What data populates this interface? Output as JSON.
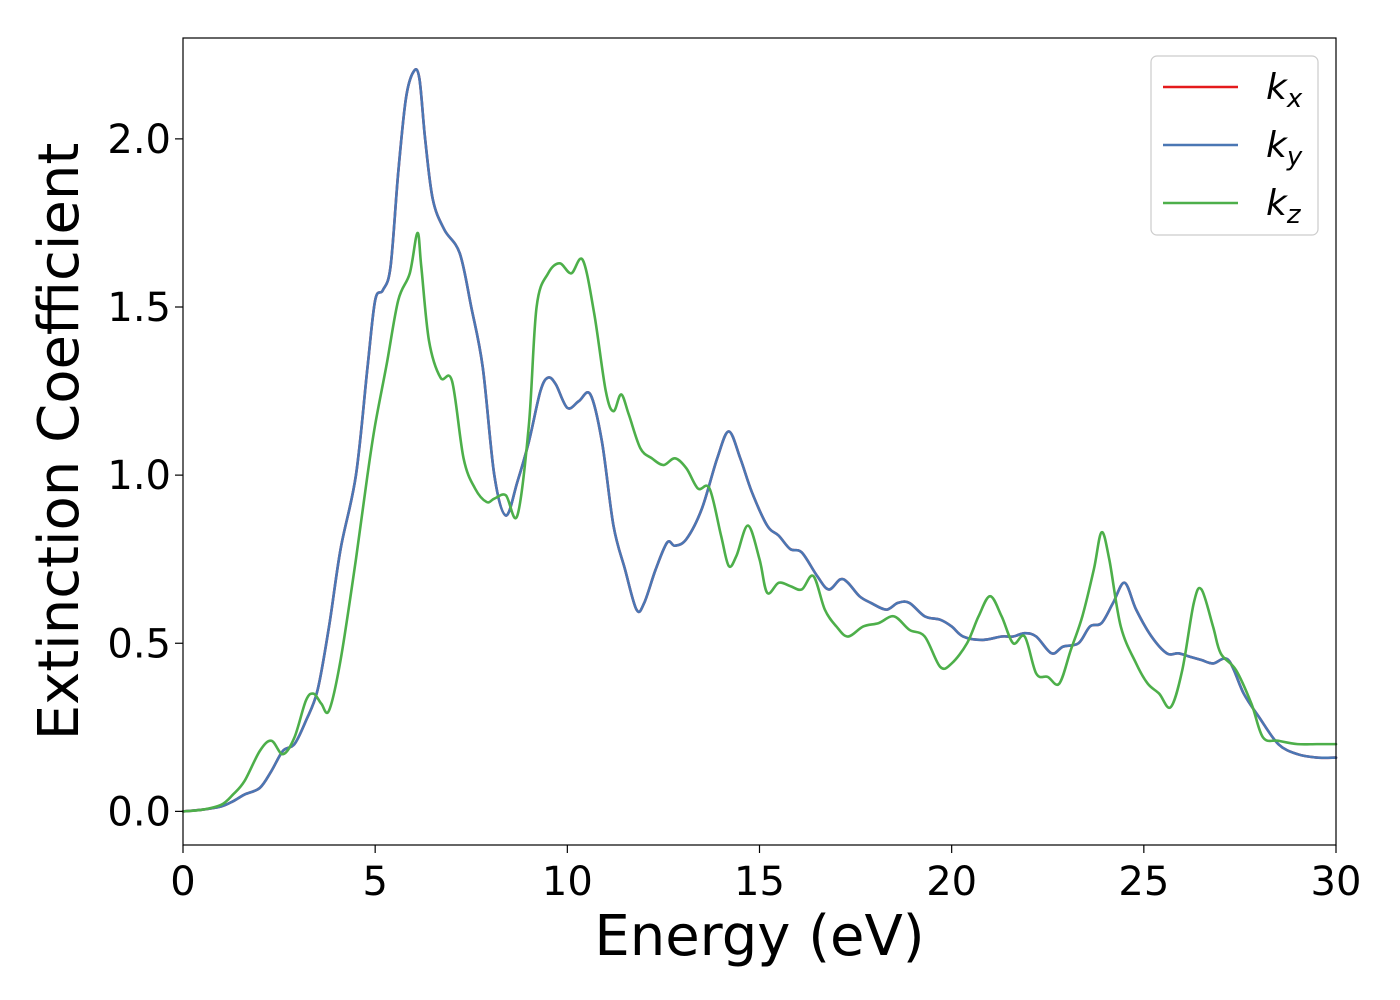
{
  "chart_data": {
    "type": "line",
    "xlabel": "Energy (eV)",
    "ylabel": "Extinction Coefficient",
    "xlim": [
      0,
      30
    ],
    "ylim": [
      -0.1,
      2.3
    ],
    "xticks": [
      0,
      5,
      10,
      15,
      20,
      25,
      30
    ],
    "xtick_labels": [
      "0",
      "5",
      "10",
      "15",
      "20",
      "25",
      "30"
    ],
    "yticks": [
      0.0,
      0.5,
      1.0,
      1.5,
      2.0
    ],
    "ytick_labels": [
      "0.0",
      "0.5",
      "1.0",
      "1.5",
      "2.0"
    ],
    "grid": false,
    "legend_position": "top-right",
    "series": [
      {
        "name": "kx",
        "label_main": "k",
        "label_sub": "x",
        "color": "#e41a1c",
        "x": [
          0,
          0.5,
          1.0,
          1.3,
          1.6,
          2.0,
          2.3,
          2.6,
          2.9,
          3.2,
          3.5,
          3.8,
          4.1,
          4.5,
          4.8,
          5.0,
          5.2,
          5.4,
          5.6,
          5.8,
          6.0,
          6.15,
          6.3,
          6.5,
          6.8,
          7.2,
          7.5,
          7.8,
          8.1,
          8.4,
          8.7,
          9.0,
          9.3,
          9.5,
          9.7,
          10.0,
          10.3,
          10.6,
          10.9,
          11.2,
          11.5,
          11.8,
          12.0,
          12.3,
          12.6,
          12.8,
          13.1,
          13.5,
          13.9,
          14.2,
          14.5,
          14.8,
          15.2,
          15.5,
          15.8,
          16.1,
          16.5,
          16.8,
          17.1,
          17.3,
          17.6,
          17.9,
          18.3,
          18.6,
          18.9,
          19.3,
          19.7,
          20.0,
          20.3,
          20.8,
          21.3,
          21.6,
          21.9,
          22.2,
          22.6,
          22.9,
          23.3,
          23.6,
          23.9,
          24.2,
          24.5,
          24.8,
          25.2,
          25.6,
          25.9,
          26.2,
          26.5,
          26.8,
          27.2,
          27.6,
          28.0,
          28.5,
          29.0,
          29.5,
          30.0
        ],
        "y": [
          0.0,
          0.005,
          0.015,
          0.03,
          0.05,
          0.07,
          0.12,
          0.18,
          0.2,
          0.27,
          0.36,
          0.55,
          0.78,
          1.0,
          1.32,
          1.52,
          1.55,
          1.62,
          1.9,
          2.12,
          2.2,
          2.18,
          2.0,
          1.82,
          1.73,
          1.66,
          1.5,
          1.32,
          1.0,
          0.88,
          0.98,
          1.1,
          1.25,
          1.29,
          1.27,
          1.2,
          1.22,
          1.24,
          1.1,
          0.85,
          0.72,
          0.6,
          0.62,
          0.72,
          0.8,
          0.79,
          0.81,
          0.9,
          1.05,
          1.13,
          1.05,
          0.95,
          0.85,
          0.82,
          0.78,
          0.77,
          0.7,
          0.66,
          0.69,
          0.68,
          0.64,
          0.62,
          0.6,
          0.62,
          0.62,
          0.58,
          0.57,
          0.55,
          0.52,
          0.51,
          0.52,
          0.52,
          0.53,
          0.52,
          0.47,
          0.49,
          0.5,
          0.55,
          0.56,
          0.62,
          0.68,
          0.6,
          0.52,
          0.47,
          0.47,
          0.46,
          0.45,
          0.44,
          0.45,
          0.35,
          0.28,
          0.2,
          0.17,
          0.16,
          0.16
        ]
      },
      {
        "name": "ky",
        "label_main": "k",
        "label_sub": "y",
        "color": "#4a77b4",
        "x": [
          0,
          0.5,
          1.0,
          1.3,
          1.6,
          2.0,
          2.3,
          2.6,
          2.9,
          3.2,
          3.5,
          3.8,
          4.1,
          4.5,
          4.8,
          5.0,
          5.2,
          5.4,
          5.6,
          5.8,
          6.0,
          6.15,
          6.3,
          6.5,
          6.8,
          7.2,
          7.5,
          7.8,
          8.1,
          8.4,
          8.7,
          9.0,
          9.3,
          9.5,
          9.7,
          10.0,
          10.3,
          10.6,
          10.9,
          11.2,
          11.5,
          11.8,
          12.0,
          12.3,
          12.6,
          12.8,
          13.1,
          13.5,
          13.9,
          14.2,
          14.5,
          14.8,
          15.2,
          15.5,
          15.8,
          16.1,
          16.5,
          16.8,
          17.1,
          17.3,
          17.6,
          17.9,
          18.3,
          18.6,
          18.9,
          19.3,
          19.7,
          20.0,
          20.3,
          20.8,
          21.3,
          21.6,
          21.9,
          22.2,
          22.6,
          22.9,
          23.3,
          23.6,
          23.9,
          24.2,
          24.5,
          24.8,
          25.2,
          25.6,
          25.9,
          26.2,
          26.5,
          26.8,
          27.2,
          27.6,
          28.0,
          28.5,
          29.0,
          29.5,
          30.0
        ],
        "y": [
          0.0,
          0.005,
          0.015,
          0.03,
          0.05,
          0.07,
          0.12,
          0.18,
          0.2,
          0.27,
          0.36,
          0.55,
          0.78,
          1.0,
          1.32,
          1.52,
          1.55,
          1.62,
          1.9,
          2.12,
          2.2,
          2.18,
          2.0,
          1.82,
          1.73,
          1.66,
          1.5,
          1.32,
          1.0,
          0.88,
          0.98,
          1.1,
          1.25,
          1.29,
          1.27,
          1.2,
          1.22,
          1.24,
          1.1,
          0.85,
          0.72,
          0.6,
          0.62,
          0.72,
          0.8,
          0.79,
          0.81,
          0.9,
          1.05,
          1.13,
          1.05,
          0.95,
          0.85,
          0.82,
          0.78,
          0.77,
          0.7,
          0.66,
          0.69,
          0.68,
          0.64,
          0.62,
          0.6,
          0.62,
          0.62,
          0.58,
          0.57,
          0.55,
          0.52,
          0.51,
          0.52,
          0.52,
          0.53,
          0.52,
          0.47,
          0.49,
          0.5,
          0.55,
          0.56,
          0.62,
          0.68,
          0.6,
          0.52,
          0.47,
          0.47,
          0.46,
          0.45,
          0.44,
          0.45,
          0.35,
          0.28,
          0.2,
          0.17,
          0.16,
          0.16
        ]
      },
      {
        "name": "kz",
        "label_main": "k",
        "label_sub": "z",
        "color": "#4daf4a",
        "x": [
          0,
          0.5,
          1.0,
          1.3,
          1.6,
          2.0,
          2.3,
          2.6,
          2.9,
          3.2,
          3.4,
          3.6,
          3.8,
          4.1,
          4.5,
          4.8,
          5.0,
          5.3,
          5.6,
          5.9,
          6.1,
          6.2,
          6.4,
          6.7,
          7.0,
          7.3,
          7.6,
          7.9,
          8.1,
          8.4,
          8.7,
          9.0,
          9.2,
          9.5,
          9.8,
          10.1,
          10.4,
          10.7,
          11.0,
          11.2,
          11.4,
          11.6,
          11.9,
          12.2,
          12.5,
          12.8,
          13.1,
          13.4,
          13.7,
          14.0,
          14.2,
          14.4,
          14.7,
          15.0,
          15.2,
          15.5,
          15.8,
          16.1,
          16.4,
          16.7,
          17.0,
          17.3,
          17.7,
          18.1,
          18.5,
          18.9,
          19.3,
          19.7,
          20.0,
          20.4,
          20.7,
          21.0,
          21.3,
          21.6,
          21.9,
          22.2,
          22.5,
          22.8,
          23.1,
          23.4,
          23.7,
          23.9,
          24.1,
          24.4,
          24.8,
          25.1,
          25.4,
          25.7,
          26.0,
          26.3,
          26.5,
          26.8,
          27.0,
          27.4,
          27.8,
          28.1,
          28.5,
          29.0,
          29.5,
          30.0
        ],
        "y": [
          0.0,
          0.005,
          0.02,
          0.05,
          0.09,
          0.18,
          0.21,
          0.17,
          0.22,
          0.33,
          0.35,
          0.32,
          0.3,
          0.45,
          0.75,
          1.0,
          1.15,
          1.33,
          1.52,
          1.6,
          1.72,
          1.62,
          1.4,
          1.29,
          1.28,
          1.05,
          0.96,
          0.92,
          0.93,
          0.94,
          0.88,
          1.15,
          1.5,
          1.6,
          1.63,
          1.6,
          1.64,
          1.48,
          1.25,
          1.19,
          1.24,
          1.18,
          1.08,
          1.05,
          1.03,
          1.05,
          1.02,
          0.96,
          0.96,
          0.82,
          0.73,
          0.76,
          0.85,
          0.75,
          0.65,
          0.68,
          0.67,
          0.66,
          0.7,
          0.6,
          0.55,
          0.52,
          0.55,
          0.56,
          0.58,
          0.54,
          0.52,
          0.43,
          0.44,
          0.5,
          0.58,
          0.64,
          0.58,
          0.5,
          0.52,
          0.41,
          0.4,
          0.38,
          0.48,
          0.58,
          0.72,
          0.83,
          0.75,
          0.55,
          0.44,
          0.38,
          0.35,
          0.31,
          0.42,
          0.62,
          0.66,
          0.55,
          0.47,
          0.42,
          0.32,
          0.22,
          0.21,
          0.2,
          0.2,
          0.2
        ]
      }
    ]
  }
}
